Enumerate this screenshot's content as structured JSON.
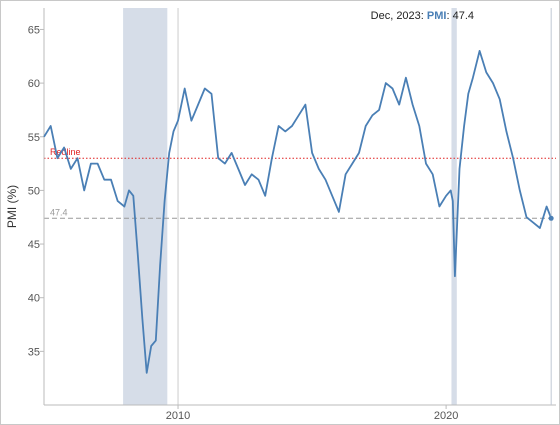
{
  "chart_data": {
    "type": "line",
    "title": "",
    "xlabel": "",
    "ylabel": "PMI (%)",
    "xlim": [
      2005.0,
      2024.1
    ],
    "ylim": [
      30.0,
      67.0
    ],
    "x_ticks": [
      {
        "value": 2010,
        "label": "2010"
      },
      {
        "value": 2020,
        "label": "2020"
      }
    ],
    "y_ticks": [
      35,
      40,
      45,
      50,
      55,
      60,
      65
    ],
    "grid": false,
    "legend": "none",
    "series": [
      {
        "color": "#4a7fb5",
        "x": [
          2005.0,
          2005.25,
          2005.5,
          2005.75,
          2006.0,
          2006.25,
          2006.5,
          2006.75,
          2007.0,
          2007.25,
          2007.5,
          2007.75,
          2008.0,
          2008.17,
          2008.33,
          2008.5,
          2008.67,
          2008.83,
          2009.0,
          2009.17,
          2009.33,
          2009.5,
          2009.67,
          2009.83,
          2010.0,
          2010.25,
          2010.5,
          2010.75,
          2011.0,
          2011.25,
          2011.5,
          2011.75,
          2012.0,
          2012.25,
          2012.5,
          2012.75,
          2013.0,
          2013.25,
          2013.5,
          2013.75,
          2014.0,
          2014.25,
          2014.5,
          2014.75,
          2015.0,
          2015.25,
          2015.5,
          2015.75,
          2016.0,
          2016.25,
          2016.5,
          2016.75,
          2017.0,
          2017.25,
          2017.5,
          2017.75,
          2018.0,
          2018.25,
          2018.5,
          2018.75,
          2019.0,
          2019.25,
          2019.5,
          2019.75,
          2020.0,
          2020.17,
          2020.25,
          2020.33,
          2020.5,
          2020.67,
          2020.83,
          2021.0,
          2021.25,
          2021.5,
          2021.75,
          2022.0,
          2022.25,
          2022.5,
          2022.75,
          2023.0,
          2023.25,
          2023.5,
          2023.75,
          2023.92
        ],
        "values": [
          55.0,
          56.0,
          53.0,
          54.0,
          52.0,
          53.0,
          50.0,
          52.5,
          52.5,
          51.0,
          51.0,
          49.0,
          48.5,
          50.0,
          49.5,
          44.0,
          38.0,
          33.0,
          35.5,
          36.0,
          43.0,
          49.0,
          53.5,
          55.5,
          56.5,
          59.5,
          56.5,
          58.0,
          59.5,
          59.0,
          53.0,
          52.5,
          53.5,
          52.0,
          50.5,
          51.5,
          51.0,
          49.5,
          53.0,
          56.0,
          55.5,
          56.0,
          57.0,
          58.0,
          53.5,
          52.0,
          51.0,
          49.5,
          48.0,
          51.5,
          52.5,
          53.5,
          56.0,
          57.0,
          57.5,
          60.0,
          59.5,
          58.0,
          60.5,
          58.0,
          56.0,
          52.5,
          51.5,
          48.5,
          49.5,
          50.0,
          49.0,
          42.0,
          52.0,
          56.0,
          59.0,
          60.5,
          63.0,
          61.0,
          60.0,
          58.5,
          55.5,
          53.0,
          50.0,
          47.5,
          47.0,
          46.5,
          48.5,
          47.4
        ]
      }
    ],
    "reference_lines": [
      {
        "label": "Redline",
        "value": 53.0,
        "color": "#e02020",
        "style": "dotted"
      },
      {
        "label": "47.4",
        "value": 47.4,
        "color": "#999999",
        "style": "dashed"
      }
    ],
    "shaded_periods": [
      {
        "x0": 2007.95,
        "x1": 2009.6,
        "color": "#d6dde8"
      },
      {
        "x0": 2020.2,
        "x1": 2020.4,
        "color": "#d6dde8"
      }
    ],
    "vertical_markers": [
      2010.0
    ],
    "tooltip": {
      "x": 2023.92,
      "value": 47.4,
      "text_prefix": "Dec, 2023: ",
      "series_label": "PMI",
      "text_suffix": ": 47.4"
    }
  }
}
